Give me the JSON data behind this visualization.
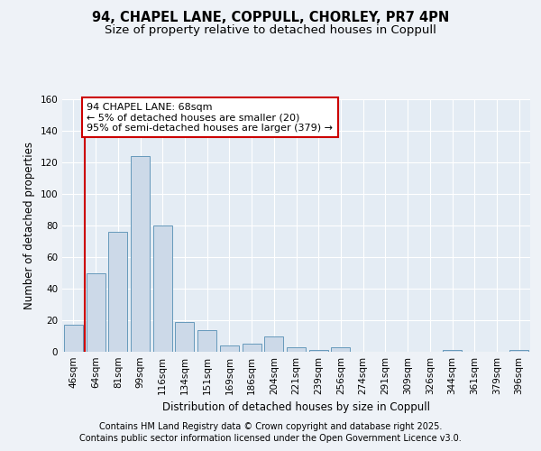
{
  "title_line1": "94, CHAPEL LANE, COPPULL, CHORLEY, PR7 4PN",
  "title_line2": "Size of property relative to detached houses in Coppull",
  "xlabel": "Distribution of detached houses by size in Coppull",
  "ylabel": "Number of detached properties",
  "categories": [
    "46sqm",
    "64sqm",
    "81sqm",
    "99sqm",
    "116sqm",
    "134sqm",
    "151sqm",
    "169sqm",
    "186sqm",
    "204sqm",
    "221sqm",
    "239sqm",
    "256sqm",
    "274sqm",
    "291sqm",
    "309sqm",
    "326sqm",
    "344sqm",
    "361sqm",
    "379sqm",
    "396sqm"
  ],
  "values": [
    17,
    50,
    76,
    124,
    80,
    19,
    14,
    4,
    5,
    10,
    3,
    1,
    3,
    0,
    0,
    0,
    0,
    1,
    0,
    0,
    1
  ],
  "bar_color": "#ccd9e8",
  "bar_edge_color": "#6699bb",
  "vline_x": 0.5,
  "vline_color": "#cc0000",
  "annotation_text": "94 CHAPEL LANE: 68sqm\n← 5% of detached houses are smaller (20)\n95% of semi-detached houses are larger (379) →",
  "annotation_box_color": "#ffffff",
  "annotation_box_edge": "#cc0000",
  "ylim": [
    0,
    160
  ],
  "yticks": [
    0,
    20,
    40,
    60,
    80,
    100,
    120,
    140,
    160
  ],
  "footer_line1": "Contains HM Land Registry data © Crown copyright and database right 2025.",
  "footer_line2": "Contains public sector information licensed under the Open Government Licence v3.0.",
  "bg_color": "#eef2f7",
  "plot_bg_color": "#e4ecf4",
  "grid_color": "#ffffff",
  "title_fontsize": 10.5,
  "subtitle_fontsize": 9.5,
  "axis_label_fontsize": 8.5,
  "tick_fontsize": 7.5,
  "footer_fontsize": 7,
  "annotation_fontsize": 8
}
